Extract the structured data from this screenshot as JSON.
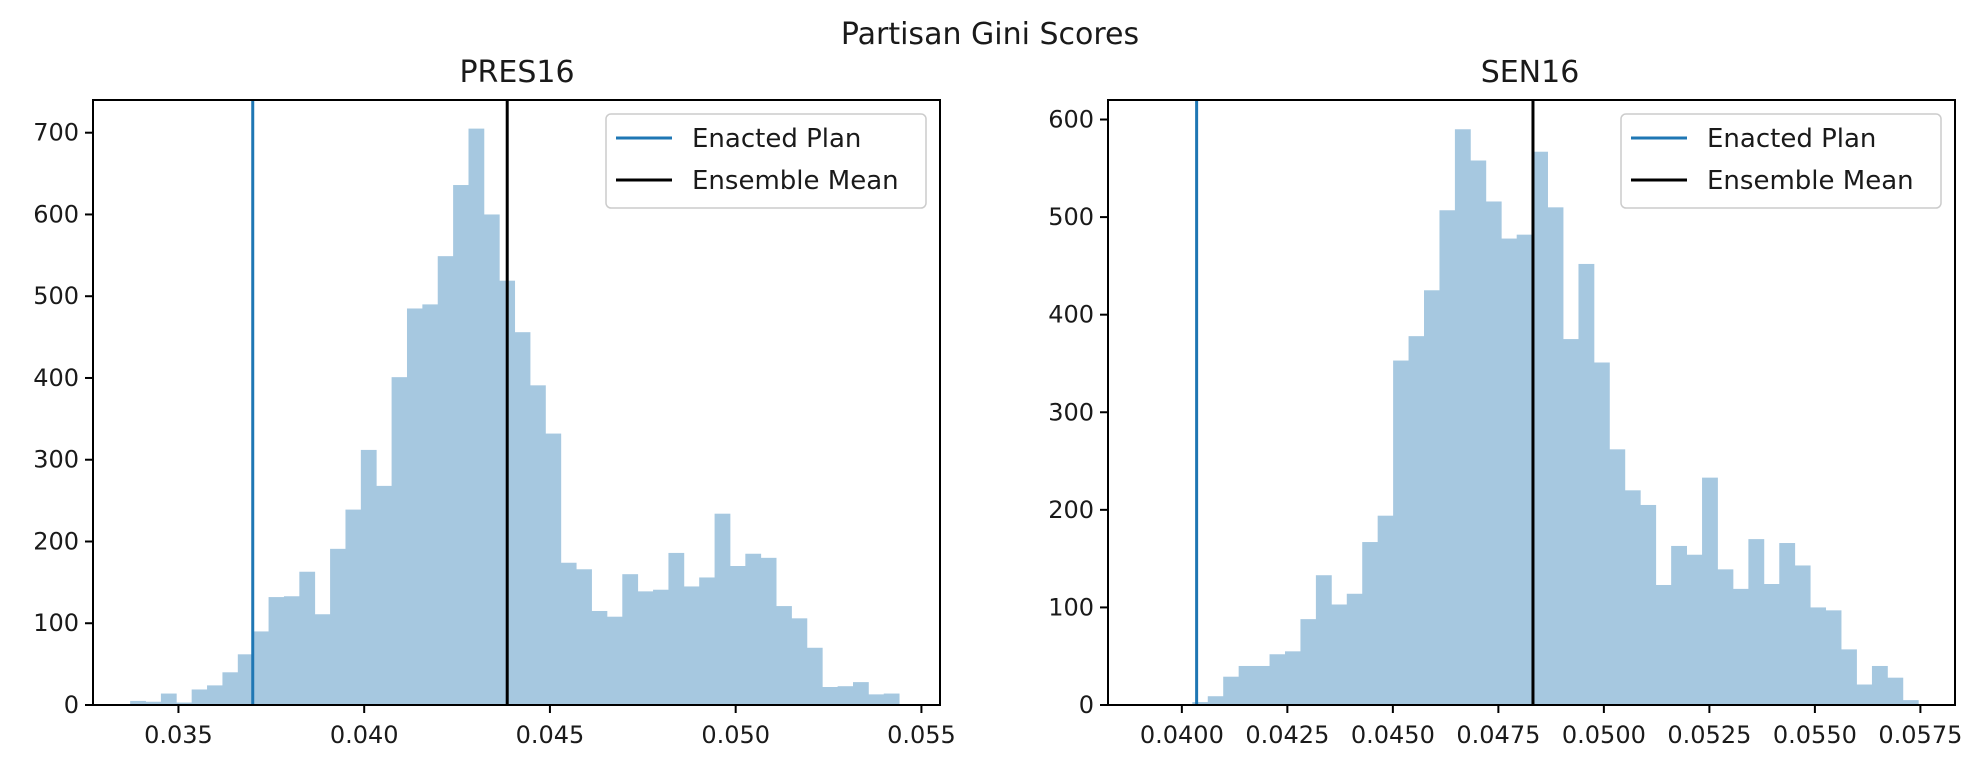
{
  "figure": {
    "suptitle": "Partisan Gini Scores"
  },
  "chart_data": [
    {
      "type": "bar",
      "title": "PRES16",
      "xlabel": "",
      "ylabel": "",
      "xlim": [
        0.0327,
        0.0555
      ],
      "ylim": [
        0,
        740
      ],
      "xticks": [
        0.035,
        0.04,
        0.045,
        0.05,
        0.055
      ],
      "xtick_labels": [
        "0.035",
        "0.040",
        "0.045",
        "0.050",
        "0.055"
      ],
      "yticks": [
        0,
        100,
        200,
        300,
        400,
        500,
        600,
        700
      ],
      "bins": {
        "start": 0.0337,
        "width": 0.000414
      },
      "values": [
        5,
        4,
        14,
        3,
        19,
        24,
        40,
        62,
        90,
        132,
        133,
        163,
        111,
        191,
        239,
        312,
        268,
        401,
        485,
        490,
        549,
        636,
        705,
        600,
        519,
        456,
        391,
        332,
        174,
        166,
        115,
        108,
        160,
        139,
        141,
        186,
        145,
        156,
        234,
        170,
        185,
        180,
        121,
        106,
        70,
        22,
        23,
        28,
        13,
        14
      ],
      "vlines": [
        {
          "name": "Enacted Plan",
          "x": 0.037,
          "color": "#1f77b4"
        },
        {
          "name": "Ensemble Mean",
          "x": 0.04385,
          "color": "#000000"
        }
      ],
      "legend": {
        "position": "top-right",
        "entries": [
          "Enacted Plan",
          "Ensemble Mean"
        ]
      }
    },
    {
      "type": "bar",
      "title": "SEN16",
      "xlabel": "",
      "ylabel": "",
      "xlim": [
        0.03825,
        0.05832
      ],
      "ylim": [
        0,
        620
      ],
      "xticks": [
        0.04,
        0.0425,
        0.045,
        0.0475,
        0.05,
        0.0525,
        0.055,
        0.0575
      ],
      "xtick_labels": [
        "0.0400",
        "0.0425",
        "0.0450",
        "0.0475",
        "0.0500",
        "0.0525",
        "0.0550",
        "0.0575"
      ],
      "yticks": [
        0,
        100,
        200,
        300,
        400,
        500,
        600
      ],
      "bins": {
        "start": 0.03915,
        "width": 0.000366
      },
      "values": [
        1,
        0,
        0,
        3,
        9,
        29,
        40,
        40,
        52,
        55,
        88,
        133,
        103,
        114,
        167,
        194,
        353,
        378,
        425,
        507,
        590,
        558,
        516,
        478,
        482,
        567,
        510,
        375,
        452,
        351,
        262,
        220,
        205,
        123,
        163,
        154,
        233,
        139,
        119,
        170,
        124,
        166,
        143,
        100,
        97,
        57,
        21,
        40,
        28,
        5
      ],
      "vlines": [
        {
          "name": "Enacted Plan",
          "x": 0.04035,
          "color": "#1f77b4"
        },
        {
          "name": "Ensemble Mean",
          "x": 0.04832,
          "color": "#000000"
        }
      ],
      "legend": {
        "position": "top-right",
        "entries": [
          "Enacted Plan",
          "Ensemble Mean"
        ]
      }
    }
  ]
}
